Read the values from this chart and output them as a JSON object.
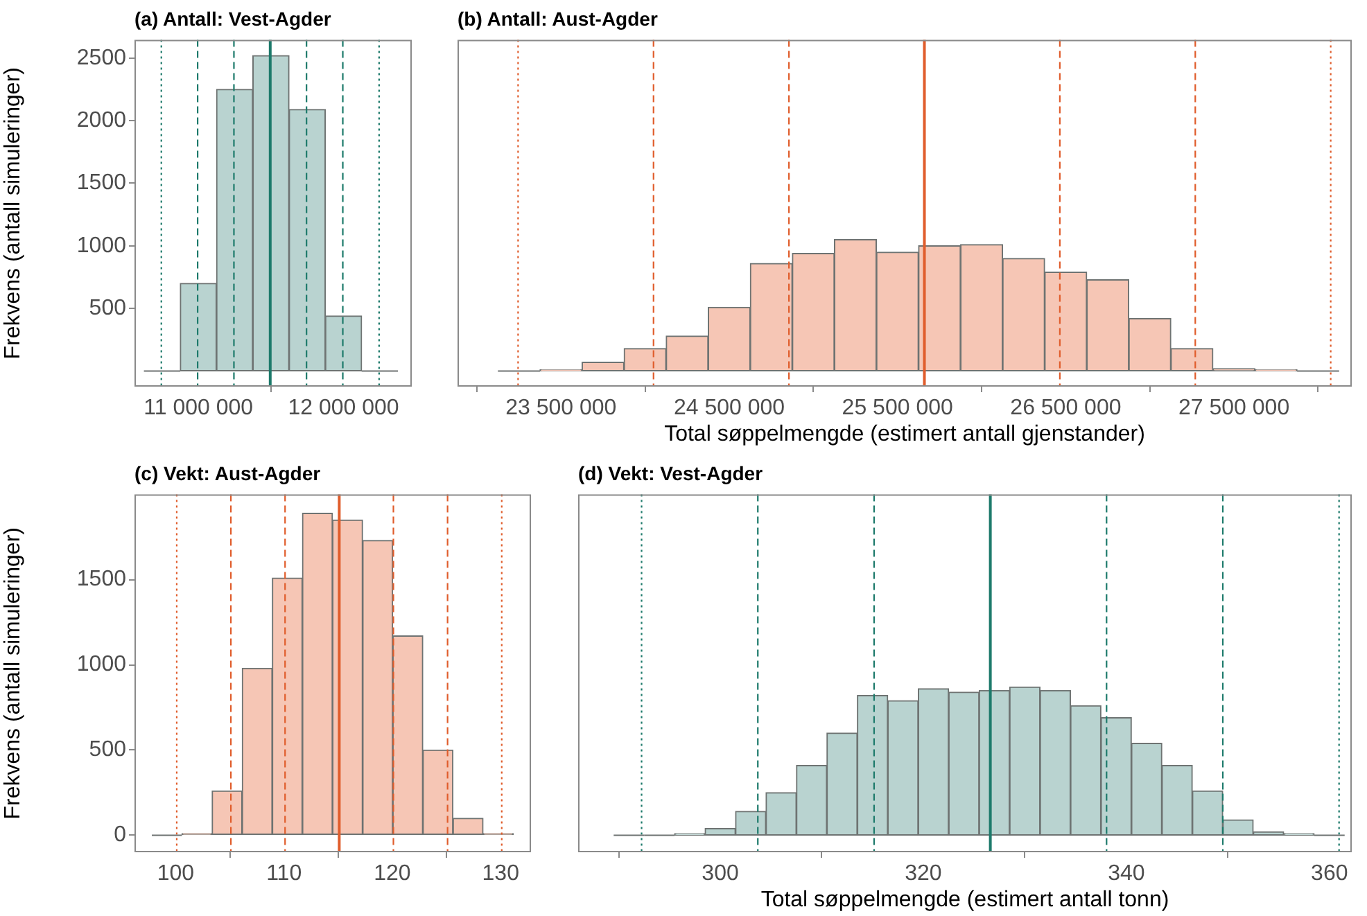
{
  "chart_data": [
    {
      "type": "histogram",
      "title": "(a) Antall: Vest-Agder",
      "ylabel": "Frekvens (antall simuleringer)",
      "color": "#b9d3d0",
      "bins": [
        10625000,
        10875000,
        11125000,
        11375000,
        11625000,
        11875000,
        12125000,
        12375000
      ],
      "values": [
        0,
        700,
        2250,
        2520,
        2090,
        440,
        0
      ],
      "xlim": [
        10560000,
        12470000
      ],
      "xticks": [
        {
          "value": 11000000,
          "label": "11 000 000"
        },
        {
          "value": 12000000,
          "label": "12 000 000"
        }
      ],
      "ylim": [
        -125,
        2645
      ],
      "yticks": [
        500,
        1000,
        1500,
        2000,
        2500
      ],
      "ref_lines": [
        {
          "axis": "x",
          "value": 10745000,
          "color": "#1d7a6b",
          "line_style": "dotted"
        },
        {
          "axis": "x",
          "value": 10995000,
          "color": "#1d7a6b",
          "line_style": "dashed"
        },
        {
          "axis": "x",
          "value": 11245000,
          "color": "#1d7a6b",
          "line_style": "dashed"
        },
        {
          "axis": "x",
          "value": 11495000,
          "color": "#1d7a6b",
          "line_style": "solid"
        },
        {
          "axis": "x",
          "value": 11745000,
          "color": "#1d7a6b",
          "line_style": "dashed"
        },
        {
          "axis": "x",
          "value": 11995000,
          "color": "#1d7a6b",
          "line_style": "dashed"
        },
        {
          "axis": "x",
          "value": 12245000,
          "color": "#1d7a6b",
          "line_style": "dotted"
        }
      ]
    },
    {
      "type": "histogram",
      "title": "(b) Antall: Aust-Agder",
      "xlabel": "Total søppelmengde (estimert antall gjenstander)",
      "color": "#f6c6b5",
      "bins": [
        23125000,
        23375000,
        23625000,
        23875000,
        24125000,
        24375000,
        24625000,
        24875000,
        25125000,
        25375000,
        25625000,
        25875000,
        26125000,
        26375000,
        26625000,
        26875000,
        27125000,
        27375000,
        27625000,
        27875000,
        28125000
      ],
      "values": [
        0,
        10,
        70,
        180,
        280,
        510,
        860,
        940,
        1050,
        950,
        1000,
        1010,
        900,
        790,
        730,
        420,
        180,
        20,
        10,
        0
      ],
      "xlim": [
        22885000,
        28200000
      ],
      "xticks": [
        {
          "value": 23500000,
          "label": "23 500 000"
        },
        {
          "value": 24500000,
          "label": "24 500 000"
        },
        {
          "value": 25500000,
          "label": "25 500 000"
        },
        {
          "value": 26500000,
          "label": "26 500 000"
        },
        {
          "value": 27500000,
          "label": "27 500 000"
        }
      ],
      "ylim": [
        -125,
        2645
      ],
      "tick_labels": "x",
      "ref_lines": [
        {
          "axis": "x",
          "value": 23245000,
          "color": "#e05d2c",
          "line_style": "dotted"
        },
        {
          "axis": "x",
          "value": 24050000,
          "color": "#e05d2c",
          "line_style": "dashed"
        },
        {
          "axis": "x",
          "value": 24855000,
          "color": "#e05d2c",
          "line_style": "dashed"
        },
        {
          "axis": "x",
          "value": 25660000,
          "color": "#e05d2c",
          "line_style": "solid"
        },
        {
          "axis": "x",
          "value": 26465000,
          "color": "#e05d2c",
          "line_style": "dashed"
        },
        {
          "axis": "x",
          "value": 27270000,
          "color": "#e05d2c",
          "line_style": "dashed"
        },
        {
          "axis": "x",
          "value": 28075000,
          "color": "#e05d2c",
          "line_style": "dotted"
        }
      ]
    },
    {
      "type": "histogram",
      "title": "(c) Vekt: Aust-Agder",
      "ylabel": "Frekvens (antall simuleringer)",
      "color": "#f6c6b5",
      "bins": [
        97.8,
        100.58,
        103.36,
        106.14,
        108.92,
        111.7,
        114.48,
        117.26,
        120.04,
        122.82,
        125.6,
        128.38,
        131.16
      ],
      "values": [
        0,
        10,
        260,
        980,
        1510,
        1890,
        1850,
        1730,
        1170,
        500,
        100,
        10
      ],
      "xlim": [
        96.2,
        132.8
      ],
      "xticks": [
        100,
        110,
        120,
        130
      ],
      "ylim": [
        -100,
        2000
      ],
      "yticks": [
        0,
        500,
        1000,
        1500
      ],
      "ref_lines": [
        {
          "axis": "x",
          "value": 100.1,
          "color": "#e05d2c",
          "line_style": "dotted"
        },
        {
          "axis": "x",
          "value": 105.1,
          "color": "#e05d2c",
          "line_style": "dashed"
        },
        {
          "axis": "x",
          "value": 110.1,
          "color": "#e05d2c",
          "line_style": "dashed"
        },
        {
          "axis": "x",
          "value": 115.1,
          "color": "#e05d2c",
          "line_style": "solid"
        },
        {
          "axis": "x",
          "value": 120.1,
          "color": "#e05d2c",
          "line_style": "dashed"
        },
        {
          "axis": "x",
          "value": 125.1,
          "color": "#e05d2c",
          "line_style": "dashed"
        },
        {
          "axis": "x",
          "value": 130.1,
          "color": "#e05d2c",
          "line_style": "dotted"
        }
      ]
    },
    {
      "type": "histogram",
      "title": "(d) Vekt: Vest-Agder",
      "xlabel": "Total søppelmengde (estimert antall tonn)",
      "color": "#b9d3d0",
      "bins": [
        289.5,
        292.5,
        295.5,
        298.5,
        301.5,
        304.5,
        307.5,
        310.5,
        313.5,
        316.5,
        319.5,
        322.5,
        325.5,
        328.5,
        331.5,
        334.5,
        337.5,
        340.5,
        343.5,
        346.5,
        349.5,
        352.5,
        355.5,
        358.5,
        361.5
      ],
      "values": [
        0,
        0,
        10,
        40,
        140,
        250,
        410,
        600,
        820,
        790,
        860,
        840,
        850,
        870,
        850,
        760,
        690,
        540,
        410,
        260,
        90,
        20,
        10,
        0
      ],
      "xlim": [
        286,
        362.2
      ],
      "xticks": [
        300,
        320,
        340,
        360
      ],
      "ylim": [
        -100,
        2000
      ],
      "tick_labels": "x",
      "ref_lines": [
        {
          "axis": "x",
          "value": 292.25,
          "color": "#1d7a6b",
          "line_style": "dotted"
        },
        {
          "axis": "x",
          "value": 303.7,
          "color": "#1d7a6b",
          "line_style": "dashed"
        },
        {
          "axis": "x",
          "value": 315.15,
          "color": "#1d7a6b",
          "line_style": "dashed"
        },
        {
          "axis": "x",
          "value": 326.6,
          "color": "#1d7a6b",
          "line_style": "solid"
        },
        {
          "axis": "x",
          "value": 338.05,
          "color": "#1d7a6b",
          "line_style": "dashed"
        },
        {
          "axis": "x",
          "value": 349.5,
          "color": "#1d7a6b",
          "line_style": "dashed"
        },
        {
          "axis": "x",
          "value": 360.95,
          "color": "#1d7a6b",
          "line_style": "dotted"
        }
      ]
    }
  ]
}
